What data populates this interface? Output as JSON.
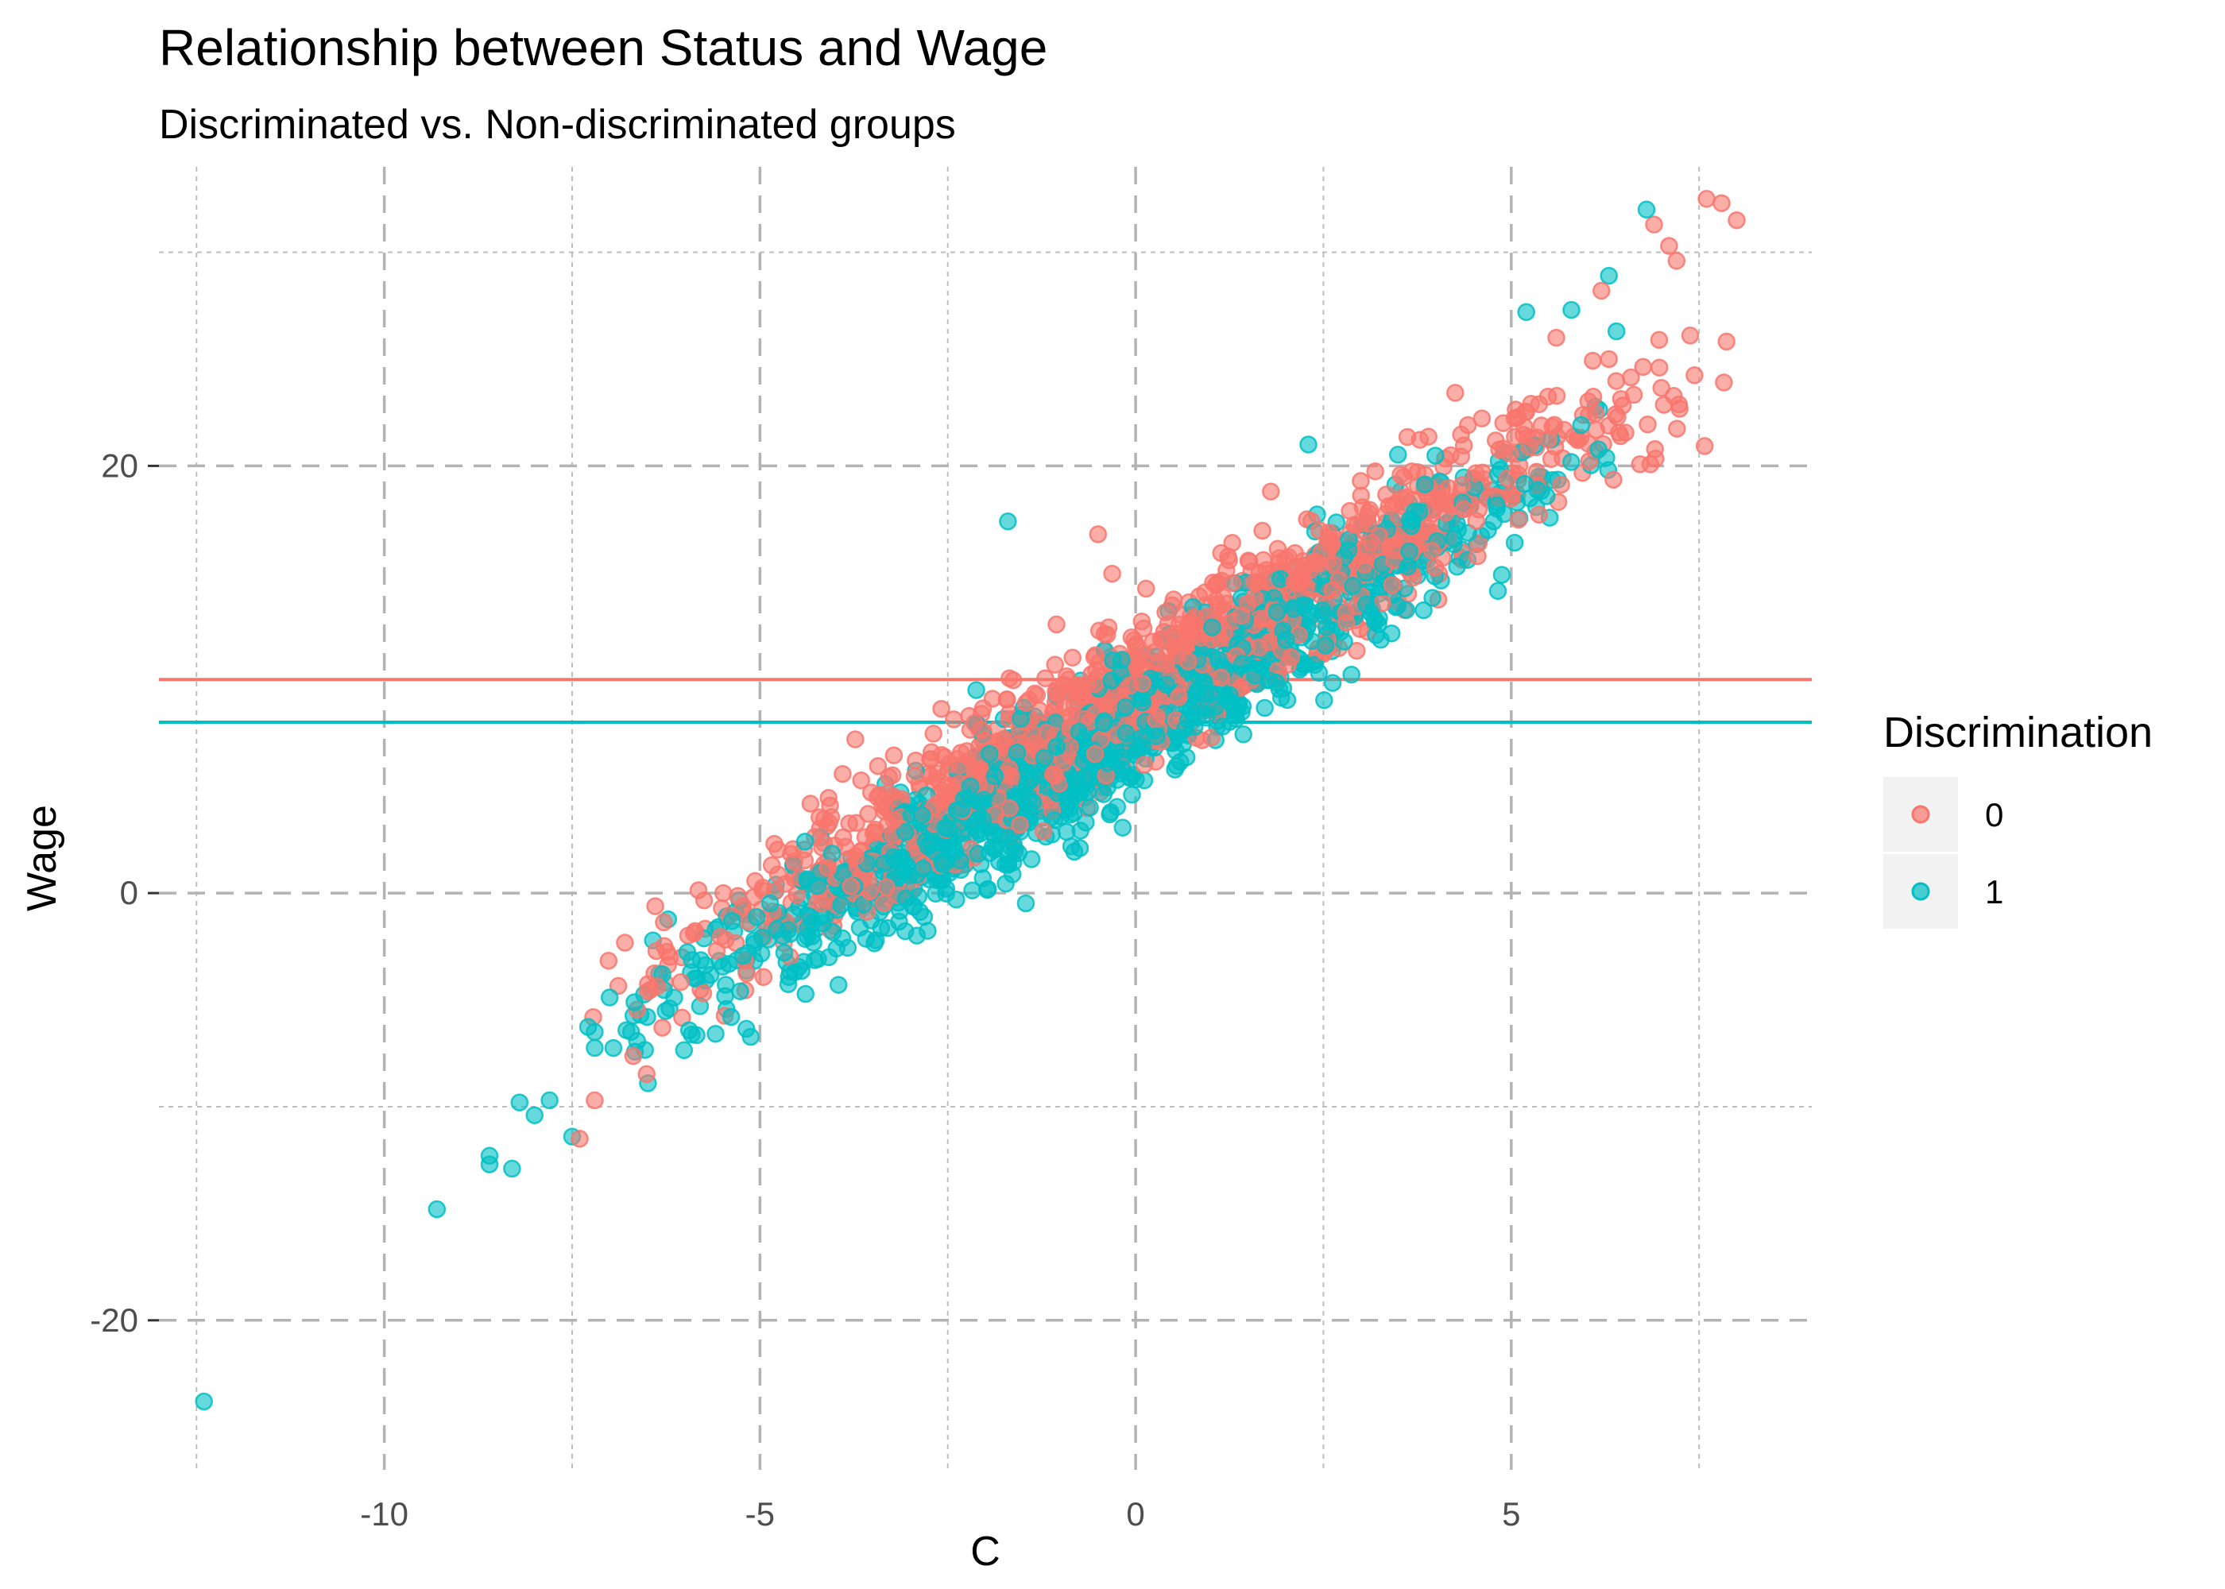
{
  "chart_data": {
    "type": "scatter",
    "title": "Relationship between Status and Wage",
    "subtitle": "Discriminated vs. Non-discriminated groups",
    "xlabel": "C",
    "ylabel": "Wage",
    "xlim": [
      -13,
      9
    ],
    "ylim": [
      -27,
      34
    ],
    "x_ticks": [
      -10,
      -5,
      0,
      5
    ],
    "y_ticks": [
      -20,
      0,
      20
    ],
    "x_tick_labels": [
      "-10",
      "-5",
      "0",
      "5"
    ],
    "y_tick_labels": [
      "-20",
      "0",
      "20"
    ],
    "x_minor_gridlines": [
      -12.5,
      -7.5,
      -2.5,
      2.5,
      7.5
    ],
    "y_minor_gridlines": [
      -10,
      10,
      30
    ],
    "grid": "dashed",
    "legend": {
      "title": "Discrimination",
      "placement": "right",
      "entries": [
        {
          "label": "0",
          "color": "#F8766D"
        },
        {
          "label": "1",
          "color": "#00BFC4"
        }
      ]
    },
    "hlines": [
      {
        "y": 10,
        "color": "#F8766D"
      },
      {
        "y": 8,
        "color": "#00BFC4"
      }
    ],
    "series": [
      {
        "name": "0",
        "color": "#F8766D",
        "trend": {
          "slope": 2.05,
          "intercept": 9.5,
          "x_range": [
            -7.3,
            8.0
          ],
          "spread": 1.6,
          "count": 1300
        },
        "points": [
          [
            7.6,
            32.5
          ],
          [
            7.8,
            32.3
          ],
          [
            8.0,
            31.5
          ],
          [
            7.1,
            30.3
          ],
          [
            6.9,
            31.3
          ],
          [
            7.2,
            29.6
          ],
          [
            6.2,
            28.2
          ],
          [
            5.6,
            26.0
          ],
          [
            6.3,
            25.0
          ],
          [
            -7.4,
            -11.5
          ],
          [
            -7.2,
            -9.7
          ],
          [
            -6.3,
            -6.3
          ],
          [
            -0.5,
            16.8
          ],
          [
            1.8,
            18.8
          ],
          [
            2.5,
            11.2
          ],
          [
            -2.9,
            0.8
          ]
        ]
      },
      {
        "name": "1",
        "color": "#00BFC4",
        "trend": {
          "slope": 2.1,
          "intercept": 7.9,
          "x_range": [
            -7.3,
            6.3
          ],
          "spread": 1.6,
          "count": 1300
        },
        "points": [
          [
            -12.4,
            -23.8
          ],
          [
            -9.3,
            -14.8
          ],
          [
            -8.6,
            -12.7
          ],
          [
            -8.6,
            -12.3
          ],
          [
            -8.3,
            -12.9
          ],
          [
            -8.0,
            -10.4
          ],
          [
            -7.8,
            -9.7
          ],
          [
            -8.2,
            -9.8
          ],
          [
            -7.5,
            -11.4
          ],
          [
            -7.2,
            -6.5
          ],
          [
            -6.5,
            -5.8
          ],
          [
            -6.3,
            -3.8
          ],
          [
            6.8,
            32.0
          ],
          [
            6.3,
            28.9
          ],
          [
            5.8,
            27.3
          ],
          [
            5.2,
            27.2
          ],
          [
            6.4,
            26.3
          ],
          [
            -1.7,
            17.4
          ],
          [
            2.3,
            21.0
          ]
        ]
      }
    ]
  }
}
